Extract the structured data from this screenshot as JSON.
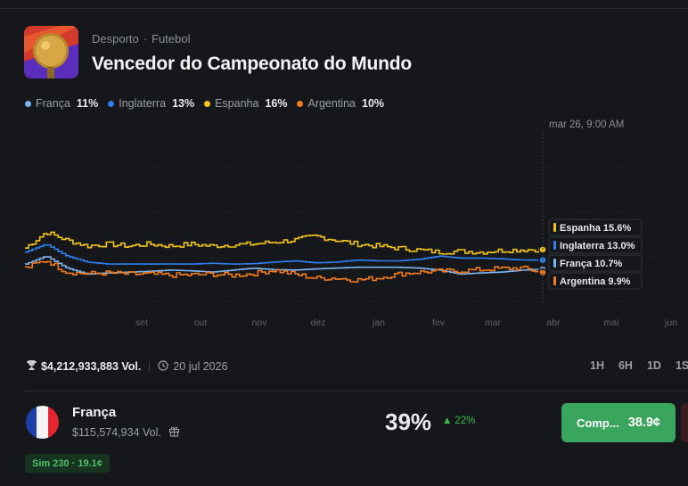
{
  "header": {
    "breadcrumb_category": "Desporto",
    "breadcrumb_separator": "·",
    "breadcrumb_subcategory": "Futebol",
    "title": "Vencedor do Campeonato do Mundo"
  },
  "legend": [
    {
      "name": "França",
      "value": "11%",
      "color": "#7db3f0"
    },
    {
      "name": "Inglaterra",
      "value": "13%",
      "color": "#2f7ff0"
    },
    {
      "name": "Espanha",
      "value": "16%",
      "color": "#f2c318"
    },
    {
      "name": "Argentina",
      "value": "10%",
      "color": "#f07b1d"
    }
  ],
  "chart_data": {
    "type": "line",
    "hover_timestamp": "mar 26, 9:00 AM",
    "x_tick_labels": [
      "set",
      "out",
      "nov",
      "dez",
      "jan",
      "fev",
      "mar",
      "abr",
      "mai",
      "jun"
    ],
    "ylim": [
      0,
      45
    ],
    "grid": true,
    "series": [
      {
        "name": "Espanha",
        "color": "#f2c318",
        "hover_label": "Espanha 15.6%",
        "values": [
          16,
          20,
          18,
          16.5,
          17,
          16.5,
          17,
          16.5,
          17,
          16.5,
          16.8,
          17,
          17.5,
          18,
          19,
          18,
          17,
          16.5,
          16,
          15.5,
          15,
          15.2,
          15,
          15.4,
          15.6,
          15.6
        ]
      },
      {
        "name": "Inglaterra",
        "color": "#2f7ff0",
        "hover_label": "Inglaterra 13.0%",
        "values": [
          15,
          17,
          14,
          12.5,
          12,
          12,
          12,
          12,
          12,
          12.2,
          12,
          12.1,
          12.5,
          12.8,
          12.3,
          12.5,
          13,
          12.8,
          12.8,
          13.2,
          14,
          13.5,
          13.5,
          13.3,
          13,
          13
        ]
      },
      {
        "name": "França",
        "color": "#7db3f0",
        "hover_label": "França 10.7%",
        "values": [
          12,
          14,
          11,
          9.5,
          9.8,
          10,
          10.2,
          10.5,
          10.3,
          10,
          10.5,
          11,
          10.6,
          10.5,
          10.8,
          11,
          11.2,
          11.2,
          11.2,
          11,
          10.5,
          9.5,
          9.8,
          10,
          10.5,
          10.7
        ]
      },
      {
        "name": "Argentina",
        "color": "#f07b1d",
        "hover_label": "Argentina 9.9%",
        "values": [
          11,
          13,
          10,
          9.6,
          9.8,
          9.5,
          9.5,
          9.2,
          9.3,
          9.5,
          9.2,
          9.6,
          10.5,
          9.5,
          8.5,
          8.5,
          8,
          8.5,
          9.5,
          10,
          10.2,
          10.3,
          10.6,
          10.9,
          11,
          9.9
        ]
      }
    ]
  },
  "stats": {
    "volume": "$4,212,933,883 Vol.",
    "end_date": "20 jul 2026"
  },
  "ranges": [
    "1H",
    "6H",
    "1D",
    "1S"
  ],
  "outcome": {
    "name": "França",
    "volume": "$115,574,934 Vol.",
    "probability": "39%",
    "change": "22%",
    "buy_label": "Comp...",
    "buy_price": "38.9¢",
    "sim_badge": "Sim 230 · 19.1¢"
  }
}
